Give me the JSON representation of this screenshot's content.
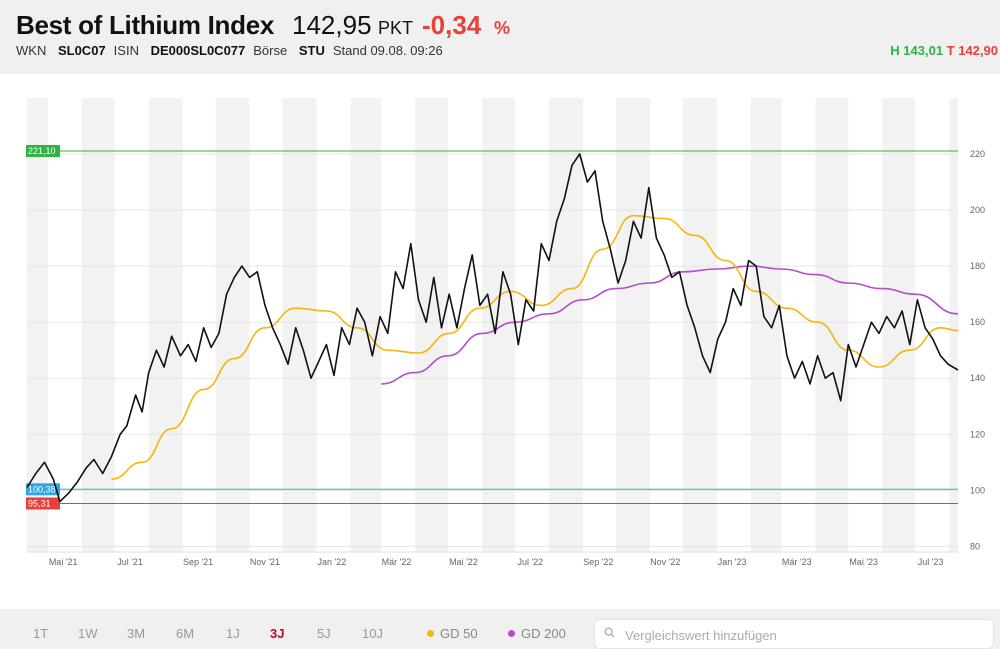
{
  "header": {
    "title": "Best of Lithium Index",
    "price": "142,95",
    "unit": "PKT",
    "change": "-0,34",
    "change_unit": "%",
    "wkn_label": "WKN",
    "wkn": "SL0C07",
    "isin_label": "ISIN",
    "isin": "DE000SL0C077",
    "exchange_label": "Börse",
    "exchange": "STU",
    "stand": "Stand 09.08. 09:26",
    "high": "H 143,01",
    "low": "T 142,90"
  },
  "footer": {
    "periods": [
      "1T",
      "1W",
      "3M",
      "6M",
      "1J",
      "3J",
      "5J",
      "10J"
    ],
    "active_period": "3J",
    "indicators": [
      {
        "label": "GD 50",
        "color": "#f5b50d"
      },
      {
        "label": "GD 200",
        "color": "#b44ec9"
      }
    ],
    "search_placeholder": "Vergleichswert hinzufügen"
  },
  "chart_data": {
    "type": "line",
    "x_tick_labels": [
      "Mai '21",
      "Jul '21",
      "Sep '21",
      "Nov '21",
      "Jan '22",
      "Mär '22",
      "Mai '22",
      "Jul '22",
      "Sep '22",
      "Nov '22",
      "Jan '23",
      "Mär '23",
      "Mai '23",
      "Jul '23"
    ],
    "x_range": [
      "2021-04-12",
      "2023-08-09"
    ],
    "y_ticks": [
      80,
      100,
      120,
      140,
      160,
      180,
      200,
      220
    ],
    "ylim": [
      78,
      240
    ],
    "reference_lines": [
      {
        "label": "221,10",
        "value": 221.1,
        "color": "#2fb344"
      },
      {
        "label": "100,38",
        "value": 100.38,
        "color": "#2ea7e0"
      },
      {
        "label": "95,31",
        "value": 95.31,
        "color": "#e8403a"
      }
    ],
    "colors": {
      "price": "#111111",
      "gd50": "#f5b50d",
      "gd200": "#b44ec9"
    },
    "series": [
      {
        "key": "price",
        "x": [
          "2021-04-12",
          "2021-04-20",
          "2021-04-28",
          "2021-05-06",
          "2021-05-12",
          "2021-05-20",
          "2021-05-28",
          "2021-06-05",
          "2021-06-12",
          "2021-06-20",
          "2021-06-28",
          "2021-07-06",
          "2021-07-12",
          "2021-07-20",
          "2021-07-26",
          "2021-08-01",
          "2021-08-08",
          "2021-08-15",
          "2021-08-22",
          "2021-08-30",
          "2021-09-06",
          "2021-09-13",
          "2021-09-20",
          "2021-09-27",
          "2021-10-04",
          "2021-10-11",
          "2021-10-18",
          "2021-10-25",
          "2021-11-01",
          "2021-11-08",
          "2021-11-15",
          "2021-11-22",
          "2021-11-29",
          "2021-12-06",
          "2021-12-13",
          "2021-12-20",
          "2021-12-27",
          "2022-01-03",
          "2022-01-10",
          "2022-01-17",
          "2022-01-24",
          "2022-01-31",
          "2022-02-07",
          "2022-02-14",
          "2022-02-21",
          "2022-02-28",
          "2022-03-07",
          "2022-03-14",
          "2022-03-21",
          "2022-03-28",
          "2022-04-04",
          "2022-04-11",
          "2022-04-18",
          "2022-04-25",
          "2022-05-02",
          "2022-05-09",
          "2022-05-16",
          "2022-05-23",
          "2022-05-30",
          "2022-06-06",
          "2022-06-13",
          "2022-06-20",
          "2022-06-27",
          "2022-07-04",
          "2022-07-11",
          "2022-07-18",
          "2022-07-25",
          "2022-08-01",
          "2022-08-08",
          "2022-08-15",
          "2022-08-22",
          "2022-08-29",
          "2022-09-05",
          "2022-09-12",
          "2022-09-19",
          "2022-09-26",
          "2022-10-03",
          "2022-10-10",
          "2022-10-17",
          "2022-10-24",
          "2022-10-31",
          "2022-11-07",
          "2022-11-14",
          "2022-11-21",
          "2022-11-28",
          "2022-12-05",
          "2022-12-12",
          "2022-12-19",
          "2022-12-26",
          "2023-01-02",
          "2023-01-09",
          "2023-01-16",
          "2023-01-23",
          "2023-01-30",
          "2023-02-06",
          "2023-02-13",
          "2023-02-20",
          "2023-02-27",
          "2023-03-06",
          "2023-03-13",
          "2023-03-20",
          "2023-03-27",
          "2023-04-03",
          "2023-04-10",
          "2023-04-17",
          "2023-04-24",
          "2023-05-01",
          "2023-05-08",
          "2023-05-15",
          "2023-05-22",
          "2023-05-29",
          "2023-06-05",
          "2023-06-12",
          "2023-06-19",
          "2023-06-26",
          "2023-07-03",
          "2023-07-10",
          "2023-07-17",
          "2023-07-24",
          "2023-07-31",
          "2023-08-09"
        ],
        "values": [
          101,
          106,
          110,
          104,
          96,
          99,
          103,
          108,
          111,
          106,
          112,
          120,
          123,
          134,
          128,
          142,
          150,
          144,
          155,
          148,
          152,
          146,
          158,
          151,
          156,
          170,
          176,
          180,
          176,
          178,
          166,
          158,
          152,
          145,
          158,
          150,
          140,
          146,
          152,
          141,
          158,
          152,
          165,
          160,
          148,
          162,
          156,
          178,
          172,
          188,
          168,
          160,
          176,
          158,
          170,
          158,
          172,
          184,
          166,
          170,
          156,
          178,
          170,
          152,
          168,
          164,
          188,
          182,
          196,
          204,
          216,
          220,
          210,
          214,
          196,
          186,
          174,
          182,
          196,
          190,
          208,
          190,
          184,
          176,
          178,
          166,
          158,
          148,
          142,
          154,
          160,
          172,
          166,
          182,
          180,
          162,
          158,
          166,
          148,
          140,
          146,
          138,
          148,
          140,
          142,
          132,
          152,
          144,
          152,
          160,
          156,
          162,
          158,
          164,
          152,
          168,
          158,
          154,
          148,
          145,
          142.95
        ]
      },
      {
        "key": "gd50",
        "x": [
          "2021-06-28",
          "2021-07-26",
          "2021-08-22",
          "2021-09-20",
          "2021-10-18",
          "2021-11-15",
          "2021-12-13",
          "2022-01-10",
          "2022-02-07",
          "2022-03-07",
          "2022-04-04",
          "2022-05-02",
          "2022-05-30",
          "2022-06-27",
          "2022-07-25",
          "2022-08-22",
          "2022-09-19",
          "2022-10-17",
          "2022-11-14",
          "2022-12-12",
          "2023-01-09",
          "2023-02-06",
          "2023-03-06",
          "2023-04-03",
          "2023-05-01",
          "2023-05-29",
          "2023-06-26",
          "2023-07-24",
          "2023-08-09"
        ],
        "values": [
          104,
          110,
          122,
          136,
          147,
          158,
          165,
          164,
          158,
          150,
          149,
          156,
          165,
          171,
          166,
          172,
          186,
          198,
          197,
          191,
          182,
          171,
          165,
          160,
          150,
          144,
          150,
          158,
          157
        ]
      },
      {
        "key": "gd200",
        "x": [
          "2022-03-01",
          "2022-04-01",
          "2022-05-01",
          "2022-06-01",
          "2022-07-01",
          "2022-08-01",
          "2022-09-01",
          "2022-10-01",
          "2022-11-01",
          "2022-12-01",
          "2023-01-01",
          "2023-02-01",
          "2023-03-01",
          "2023-04-01",
          "2023-05-01",
          "2023-06-01",
          "2023-07-01",
          "2023-08-09"
        ],
        "values": [
          138,
          142,
          148,
          156,
          160,
          163,
          168,
          172,
          174,
          178,
          179,
          180,
          179,
          177,
          174,
          172,
          170,
          163
        ]
      }
    ]
  }
}
